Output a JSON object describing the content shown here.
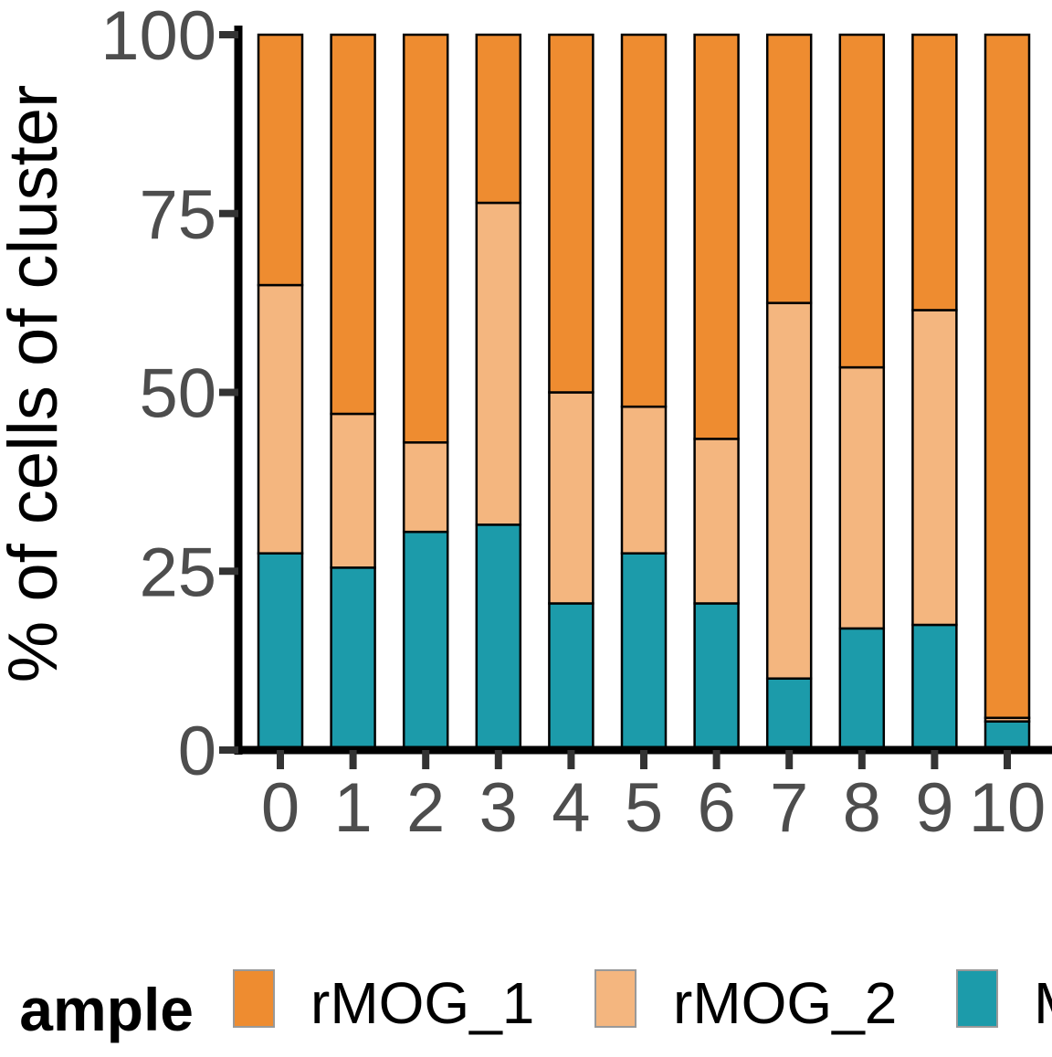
{
  "chart_data": {
    "type": "bar",
    "stacked": true,
    "orientation": "vertical",
    "ylabel": "% of cells of cluster",
    "xlabel": "",
    "ylim": [
      0,
      100
    ],
    "yticks": [
      "0",
      "25",
      "50",
      "75",
      "100"
    ],
    "categories": [
      "0",
      "1",
      "2",
      "3",
      "4",
      "5",
      "6",
      "7",
      "8",
      "9",
      "10"
    ],
    "series": [
      {
        "name": "M",
        "color": "#1C9BAA",
        "values": [
          27.5,
          25.5,
          30.5,
          31.5,
          20.5,
          27.5,
          20.5,
          10,
          17,
          17.5,
          4
        ]
      },
      {
        "name": "rMOG_2",
        "color": "#F4B67F",
        "values": [
          37.5,
          21.5,
          12.5,
          45,
          29.5,
          20.5,
          23,
          52.5,
          36.5,
          44,
          0.5
        ]
      },
      {
        "name": "rMOG_1",
        "color": "#EE8C30",
        "values": [
          35,
          53,
          57,
          23.5,
          50,
          52,
          56.5,
          37.5,
          46.5,
          38.5,
          95.5
        ]
      }
    ],
    "legend": {
      "title": "ample",
      "position": "bottom",
      "entries": [
        "rMOG_1",
        "rMOG_2",
        "M"
      ]
    },
    "grid": false,
    "colors": {
      "axis": "#000000",
      "tick_label": "#4D4D4D",
      "bar_outline": "#000000"
    }
  }
}
